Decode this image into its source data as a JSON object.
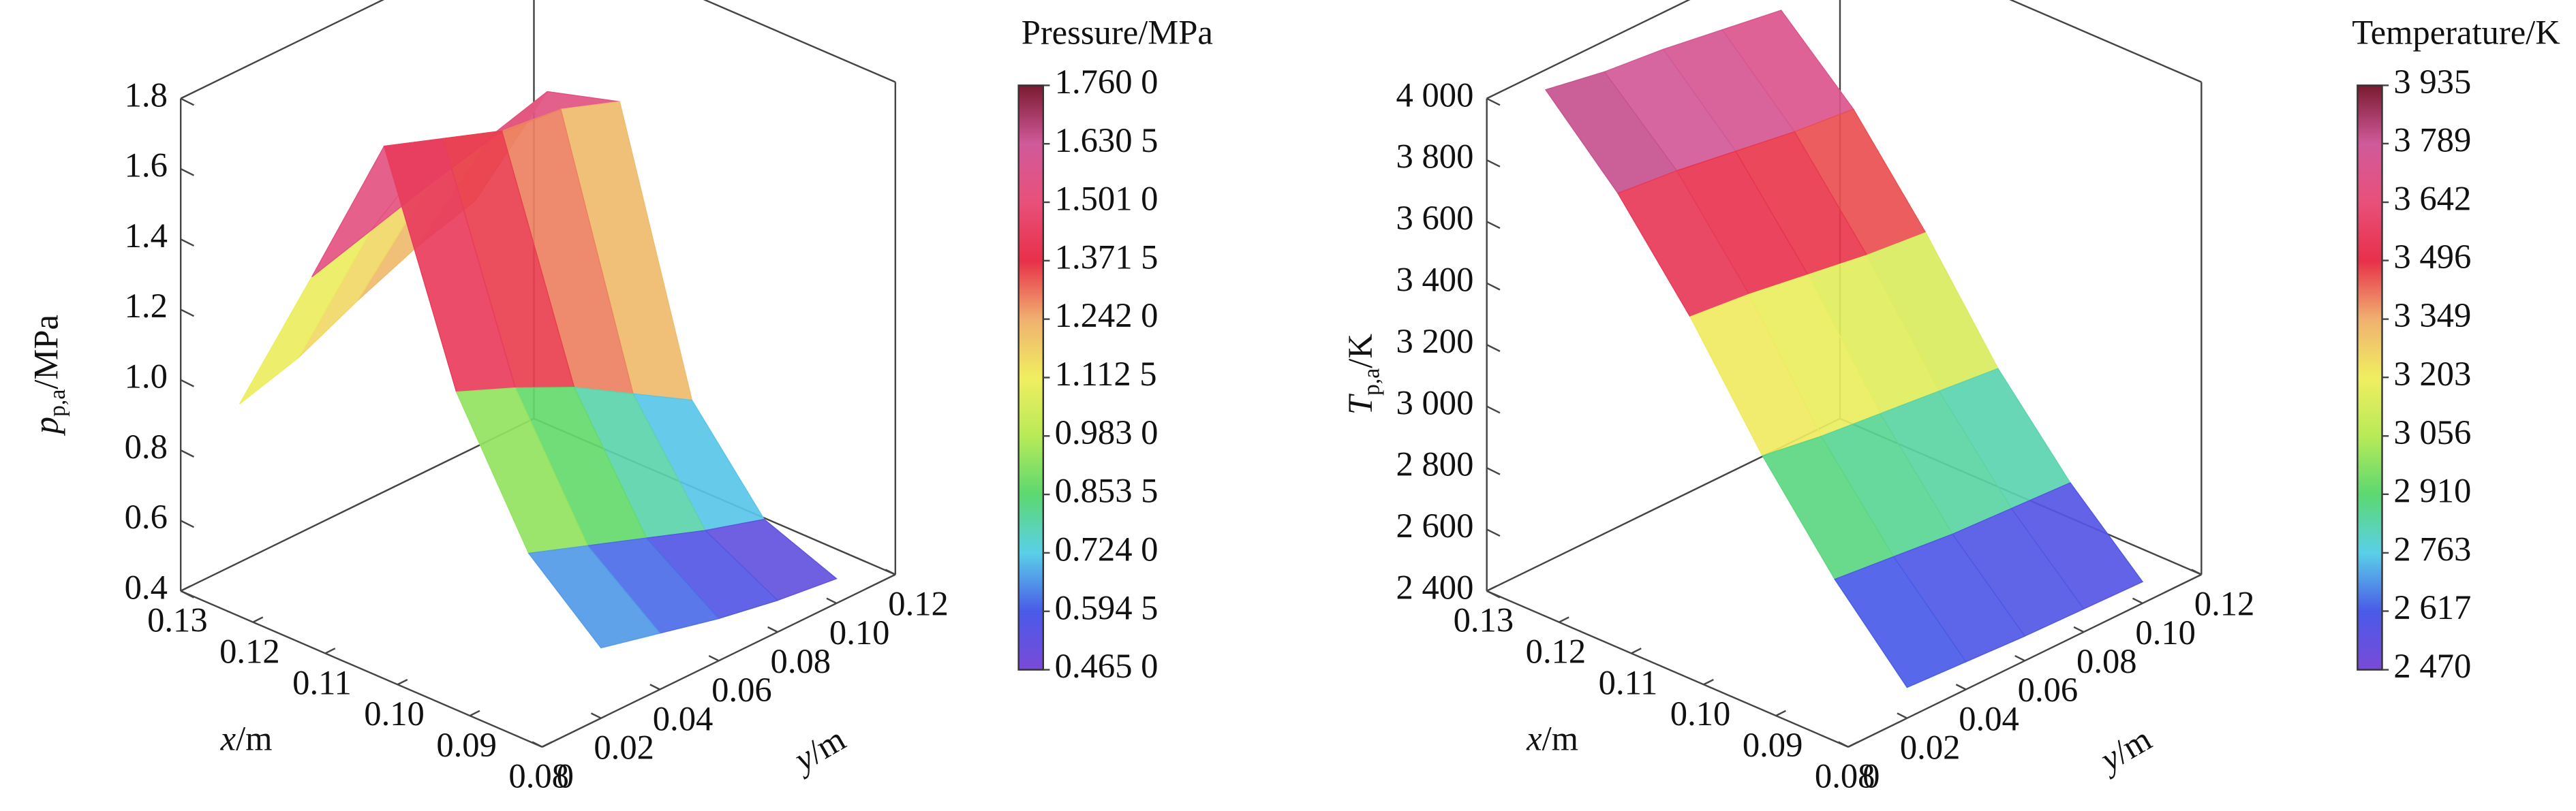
{
  "chart_data": [
    {
      "type": "surface3d",
      "x": [
        0.08,
        0.09,
        {
          "value": 0.1,
          "label": "0.10"
        },
        0.11,
        0.12,
        0.13
      ],
      "y": [
        0.02,
        0.04,
        0.06,
        0.08,
        {
          "value": 0.1,
          "label": "0.10"
        }
      ],
      "z": [
        [
          0.6,
          0.56,
          0.52,
          0.49,
          0.47
        ],
        [
          0.78,
          0.72,
          0.66,
          0.6,
          0.55
        ],
        [
          1.15,
          1.08,
          1.0,
          0.9,
          0.8
        ],
        [
          1.76,
          1.7,
          1.64,
          1.62,
          1.56
        ],
        [
          1.3,
          1.35,
          1.4,
          1.45,
          1.5
        ],
        [
          0.85,
          0.9,
          0.98,
          1.05,
          1.1
        ]
      ],
      "xlim": [
        0.08,
        0.13
      ],
      "ylim": [
        0,
        0.12
      ],
      "zlim": [
        0.4,
        1.8
      ],
      "xticks": [
        0.13,
        0.12,
        0.11,
        {
          "value": 0.1,
          "label": "0.10"
        },
        0.09,
        0.08
      ],
      "yticks": [
        0,
        0.02,
        0.04,
        0.06,
        0.08,
        {
          "value": 0.1,
          "label": "0.10"
        },
        0.12
      ],
      "zticks": [
        0.4,
        0.6,
        0.8,
        {
          "value": 1.0,
          "label": "1.0"
        },
        1.2,
        1.4,
        1.6,
        1.8
      ],
      "x_label": {
        "symbol": "x",
        "unit": "/m"
      },
      "y_label": {
        "symbol": "y",
        "unit": "/m"
      },
      "z_label": {
        "symbol": "p",
        "subscript": "p,a",
        "unit": "/MPa"
      },
      "colorbar": {
        "title": "Pressure/MPa",
        "ticks": [
          {
            "value": 1.76,
            "label": "1.760 0"
          },
          {
            "value": 1.6305,
            "label": "1.630 5"
          },
          {
            "value": 1.501,
            "label": "1.501 0"
          },
          {
            "value": 1.3715,
            "label": "1.371 5"
          },
          {
            "value": 1.242,
            "label": "1.242 0"
          },
          {
            "value": 1.1125,
            "label": "1.112 5"
          },
          {
            "value": 0.983,
            "label": "0.983 0"
          },
          {
            "value": 0.8535,
            "label": "0.853 5"
          },
          {
            "value": 0.724,
            "label": "0.724 0"
          },
          {
            "value": 0.5945,
            "label": "0.594 5"
          },
          {
            "value": 0.465,
            "label": "0.465 0"
          }
        ],
        "colors": [
          "#7a4ad8",
          "#4a5ae8",
          "#5ad0e8",
          "#5cd870",
          "#b8ea58",
          "#f0ee60",
          "#f0b070",
          "#e8304a",
          "#e8507a",
          "#d05a9a",
          "#7a1a30"
        ]
      }
    },
    {
      "type": "surface3d",
      "x": [
        0.08,
        0.09,
        {
          "value": 0.1,
          "label": "0.10"
        },
        0.11,
        0.12,
        0.13
      ],
      "y": [
        0.02,
        0.04,
        0.06,
        0.08,
        {
          "value": 0.1,
          "label": "0.10"
        }
      ],
      "z": [
        [
          2500,
          2490,
          2480,
          2475,
          2470
        ],
        [
          2750,
          2730,
          2710,
          2700,
          2690
        ],
        [
          3050,
          3020,
          3000,
          2980,
          2960
        ],
        [
          3400,
          3380,
          3350,
          3320,
          3300
        ],
        [
          3700,
          3680,
          3650,
          3620,
          3600
        ],
        [
          3935,
          3900,
          3880,
          3850,
          3820
        ]
      ],
      "xlim": [
        0.08,
        0.13
      ],
      "ylim": [
        0,
        0.12
      ],
      "zlim": [
        2400,
        4000
      ],
      "xticks": [
        0.13,
        0.12,
        0.11,
        {
          "value": 0.1,
          "label": "0.10"
        },
        0.09,
        0.08
      ],
      "yticks": [
        0,
        0.02,
        0.04,
        0.06,
        0.08,
        {
          "value": 0.1,
          "label": "0.10"
        },
        0.12
      ],
      "zticks": [
        {
          "value": 2400,
          "label": "2 400"
        },
        {
          "value": 2600,
          "label": "2 600"
        },
        {
          "value": 2800,
          "label": "2 800"
        },
        {
          "value": 3000,
          "label": "3 000"
        },
        {
          "value": 3200,
          "label": "3 200"
        },
        {
          "value": 3400,
          "label": "3 400"
        },
        {
          "value": 3600,
          "label": "3 600"
        },
        {
          "value": 3800,
          "label": "3 800"
        },
        {
          "value": 4000,
          "label": "4 000"
        }
      ],
      "x_label": {
        "symbol": "x",
        "unit": "/m"
      },
      "y_label": {
        "symbol": "y",
        "unit": "/m"
      },
      "z_label": {
        "symbol": "T",
        "subscript": "p,a",
        "unit": "/K"
      },
      "colorbar": {
        "title": "Temperature/K",
        "ticks": [
          {
            "value": 3935,
            "label": "3 935"
          },
          {
            "value": 3789,
            "label": "3 789"
          },
          {
            "value": 3642,
            "label": "3 642"
          },
          {
            "value": 3496,
            "label": "3 496"
          },
          {
            "value": 3349,
            "label": "3 349"
          },
          {
            "value": 3203,
            "label": "3 203"
          },
          {
            "value": 3056,
            "label": "3 056"
          },
          {
            "value": 2910,
            "label": "2 910"
          },
          {
            "value": 2763,
            "label": "2 763"
          },
          {
            "value": 2617,
            "label": "2 617"
          },
          {
            "value": 2470,
            "label": "2 470"
          }
        ],
        "colors": [
          "#7a4ad8",
          "#4a5ae8",
          "#5ad0e8",
          "#5cd870",
          "#b8ea58",
          "#f0ee60",
          "#f0b070",
          "#e8304a",
          "#e8507a",
          "#d05a9a",
          "#7a1a30"
        ]
      }
    }
  ]
}
